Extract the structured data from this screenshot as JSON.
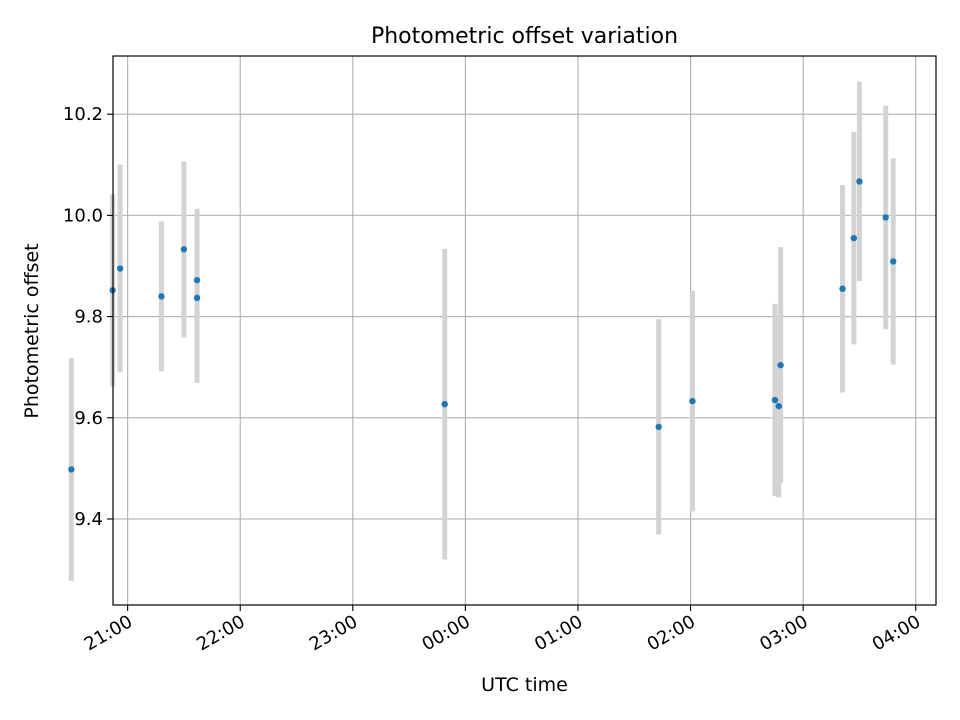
{
  "chart_data": {
    "type": "scatter",
    "title": "Photometric offset variation",
    "xlabel": "UTC time",
    "ylabel": "Photometric offset",
    "x_tick_labels": [
      "21:00",
      "22:00",
      "23:00",
      "00:00",
      "01:00",
      "02:00",
      "03:00",
      "04:00"
    ],
    "x_ticks_hours": [
      21,
      22,
      23,
      24,
      25,
      26,
      27,
      28
    ],
    "x_range_hours": [
      20.87,
      28.18
    ],
    "y_tick_labels": [
      "9.4",
      "9.6",
      "9.8",
      "10.0",
      "10.2"
    ],
    "y_ticks": [
      9.4,
      9.6,
      9.8,
      10.0,
      10.2
    ],
    "ylim": [
      9.23,
      10.315
    ],
    "grid": true,
    "point_color": "#1f77b4",
    "errorbar_color": "#d3d3d3",
    "points": [
      {
        "time": "20:30",
        "y": 9.498,
        "err": 0.22
      },
      {
        "time": "20:52",
        "y": 9.852,
        "err": 0.19
      },
      {
        "time": "20:56",
        "y": 9.895,
        "err": 0.205
      },
      {
        "time": "21:18",
        "y": 9.84,
        "err": 0.148
      },
      {
        "time": "21:30",
        "y": 9.933,
        "err": 0.174
      },
      {
        "time": "21:37",
        "y": 9.872,
        "err": 0.141
      },
      {
        "time": "21:37",
        "y": 9.837,
        "err": 0.168
      },
      {
        "time": "23:49",
        "y": 9.627,
        "err": 0.307
      },
      {
        "time": "01:43",
        "y": 9.582,
        "err": 0.213
      },
      {
        "time": "02:01",
        "y": 9.633,
        "err": 0.218
      },
      {
        "time": "02:45",
        "y": 9.635,
        "err": 0.19
      },
      {
        "time": "02:47",
        "y": 9.623,
        "err": 0.18
      },
      {
        "time": "02:48",
        "y": 9.704,
        "err": 0.233
      },
      {
        "time": "03:21",
        "y": 9.855,
        "err": 0.205
      },
      {
        "time": "03:27",
        "y": 9.955,
        "err": 0.21
      },
      {
        "time": "03:30",
        "y": 10.067,
        "err": 0.197
      },
      {
        "time": "03:44",
        "y": 9.996,
        "err": 0.221
      },
      {
        "time": "03:48",
        "y": 9.909,
        "err": 0.204
      }
    ]
  }
}
